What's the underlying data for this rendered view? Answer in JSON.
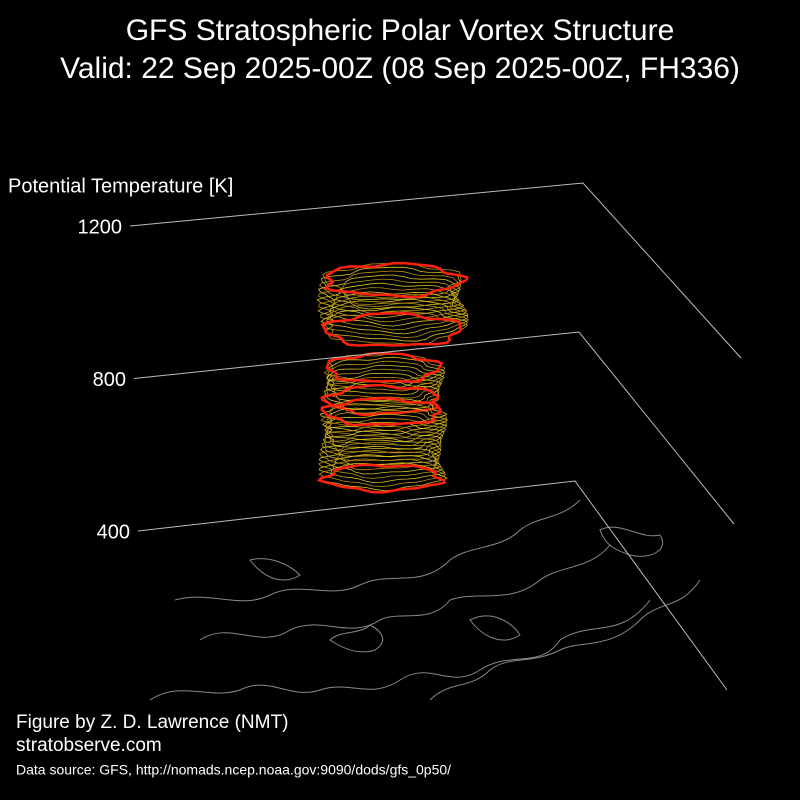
{
  "chart_data": {
    "type": "vortex3d",
    "title": "GFS Stratospheric Polar Vortex Structure",
    "subtitle": "Valid: 22 Sep 2025-00Z  (08 Sep 2025-00Z, FH336)",
    "zlabel": "Potential Temperature [K]",
    "zlim": [
      400,
      1200
    ],
    "zticks": [
      400,
      800,
      1200
    ],
    "credit": "Figure by Z. D. Lawrence (NMT)",
    "website": "stratobserve.com",
    "source": "Data source: GFS, http://nomads.ncep.noaa.gov:9090/dods/gfs_0p50/"
  }
}
